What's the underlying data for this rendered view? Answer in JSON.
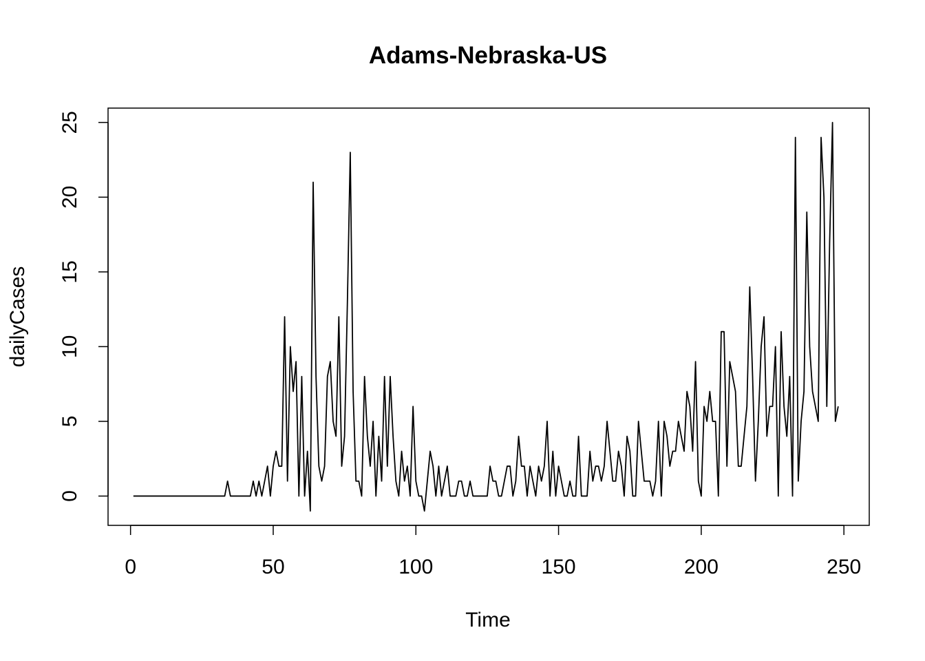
{
  "chart_data": {
    "type": "line",
    "title": "Adams-Nebraska-US",
    "xlabel": "Time",
    "ylabel": "dailyCases",
    "xlim": [
      -7.88,
      258.88
    ],
    "ylim": [
      -1.96,
      25.96
    ],
    "x_ticks": [
      0,
      50,
      100,
      150,
      200,
      250
    ],
    "y_ticks": [
      0,
      5,
      10,
      15,
      20,
      25
    ],
    "grid": false,
    "legend": "none",
    "line_color": "#000000",
    "series": [
      {
        "x_start": 1,
        "values": [
          0,
          0,
          0,
          0,
          0,
          0,
          0,
          0,
          0,
          0,
          0,
          0,
          0,
          0,
          0,
          0,
          0,
          0,
          0,
          0,
          0,
          0,
          0,
          0,
          0,
          0,
          0,
          0,
          0,
          0,
          0,
          0,
          0,
          1,
          0,
          0,
          0,
          0,
          0,
          0,
          0,
          0,
          1,
          0,
          1,
          0,
          1,
          2,
          0,
          2,
          3,
          2,
          2,
          12,
          1,
          10,
          7,
          9,
          0,
          8,
          0,
          3,
          -1,
          21,
          8,
          2,
          1,
          2,
          8,
          9,
          5,
          4,
          12,
          2,
          4,
          13,
          23,
          7,
          1,
          1,
          0,
          8,
          4,
          2,
          5,
          0,
          4,
          1,
          8,
          2,
          8,
          4,
          1,
          0,
          3,
          1,
          2,
          0,
          6,
          1,
          0,
          0,
          -1,
          1,
          3,
          2,
          0,
          2,
          0,
          1,
          2,
          0,
          0,
          0,
          1,
          1,
          0,
          0,
          1,
          0,
          0,
          0,
          0,
          0,
          0,
          2,
          1,
          1,
          0,
          0,
          1,
          2,
          2,
          0,
          1,
          4,
          2,
          2,
          0,
          2,
          1,
          0,
          2,
          1,
          2,
          5,
          0,
          3,
          0,
          2,
          1,
          0,
          0,
          1,
          0,
          0,
          4,
          0,
          0,
          0,
          3,
          1,
          2,
          2,
          1,
          2,
          5,
          3,
          1,
          1,
          3,
          2,
          0,
          4,
          3,
          0,
          0,
          5,
          3,
          1,
          1,
          1,
          0,
          1,
          5,
          0,
          5,
          4,
          2,
          3,
          3,
          5,
          4,
          3,
          7,
          6,
          3,
          9,
          1,
          0,
          6,
          5,
          7,
          5,
          5,
          0,
          11,
          11,
          2,
          9,
          8,
          7,
          2,
          2,
          4,
          6,
          14,
          8,
          1,
          5,
          10,
          12,
          4,
          6,
          6,
          10,
          0,
          11,
          6,
          4,
          8,
          0,
          24,
          1,
          5,
          7,
          19,
          10,
          7,
          6,
          5,
          24,
          20,
          6,
          17,
          25,
          5,
          6
        ]
      }
    ]
  }
}
